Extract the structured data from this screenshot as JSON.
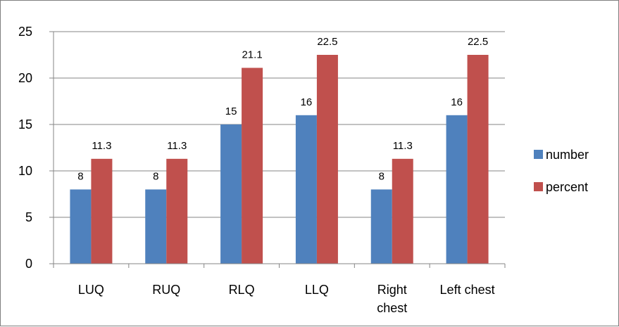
{
  "chart_data": {
    "type": "bar",
    "categories": [
      "LUQ",
      "RUQ",
      "RLQ",
      "LLQ",
      "Right chest",
      "Left chest"
    ],
    "category_lines": [
      [
        "LUQ"
      ],
      [
        "RUQ"
      ],
      [
        "RLQ"
      ],
      [
        "LLQ"
      ],
      [
        "Right",
        "chest"
      ],
      [
        "Left chest"
      ]
    ],
    "series": [
      {
        "name": "number",
        "values": [
          8,
          8,
          15,
          16,
          8,
          16
        ],
        "labels": [
          "8",
          "8",
          "15",
          "16",
          "8",
          "16"
        ],
        "color": "#4f81bd"
      },
      {
        "name": "percent",
        "values": [
          11.3,
          11.3,
          21.1,
          22.5,
          11.3,
          22.5
        ],
        "labels": [
          "11.3",
          "11.3",
          "21.1",
          "22.5",
          "11.3",
          "22.5"
        ],
        "color": "#c0504d"
      }
    ],
    "ylim": [
      0,
      25
    ],
    "yticks": [
      "0",
      "5",
      "10",
      "15",
      "20",
      "25"
    ],
    "title": "",
    "xlabel": "",
    "ylabel": "",
    "grid": true,
    "legend_position": "right"
  }
}
